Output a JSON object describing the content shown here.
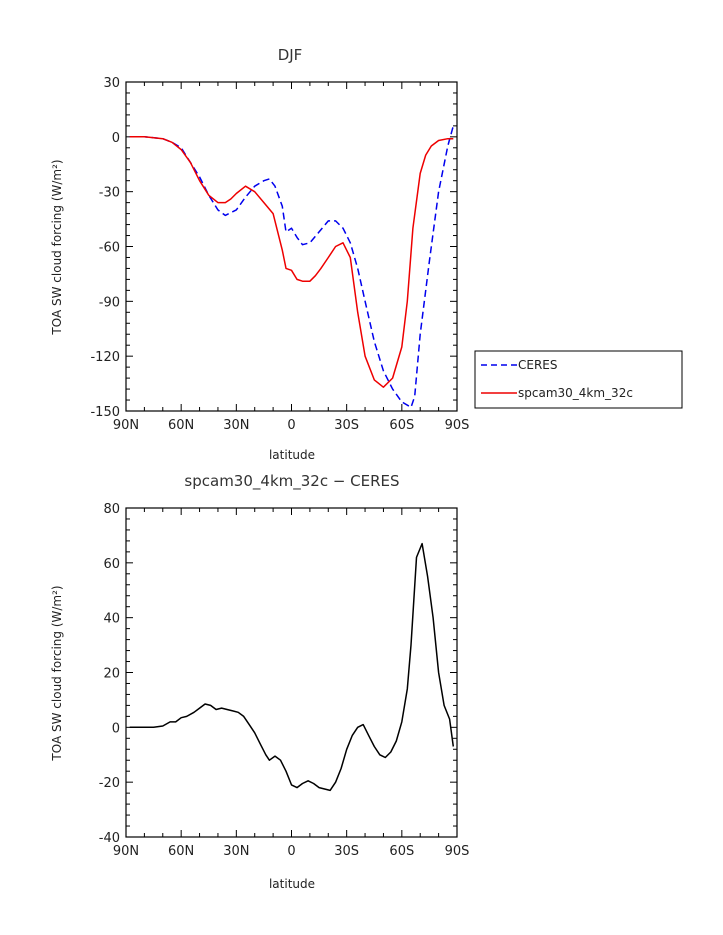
{
  "chart_data": [
    {
      "type": "line",
      "title": "DJF",
      "xlabel": "latitude",
      "ylabel": "TOA SW cloud forcing (W/m²)",
      "xlim": [
        -90,
        90
      ],
      "ylim": [
        -150,
        30
      ],
      "xticks": [
        -90,
        -60,
        -30,
        0,
        30,
        60,
        90
      ],
      "xtick_labels": [
        "90N",
        "60N",
        "30N",
        "0",
        "30S",
        "60S",
        "90S"
      ],
      "yticks": [
        -150,
        -120,
        -90,
        -60,
        -30,
        0,
        30
      ],
      "ytick_labels": [
        "-150",
        "-120",
        "-90",
        "-60",
        "-30",
        "0",
        "30"
      ],
      "legend_position": "right",
      "series": [
        {
          "name": "CERES",
          "color": "#0000ee",
          "style": "dashed",
          "x": [
            -88,
            -80,
            -70,
            -65,
            -60,
            -55,
            -50,
            -45,
            -40,
            -36,
            -30,
            -25,
            -20,
            -15,
            -12,
            -9,
            -5,
            -3,
            0,
            3,
            6,
            10,
            15,
            20,
            24,
            28,
            32,
            36,
            40,
            45,
            50,
            55,
            60,
            65,
            67,
            70,
            75,
            80,
            85,
            88
          ],
          "y": [
            0,
            0,
            -1,
            -3,
            -6,
            -14,
            -22,
            -32,
            -40,
            -43,
            -40,
            -33,
            -27,
            -24,
            -23,
            -27,
            -38,
            -52,
            -50,
            -55,
            -59,
            -58,
            -52,
            -46,
            -46,
            -50,
            -58,
            -72,
            -90,
            -112,
            -128,
            -138,
            -145,
            -148,
            -142,
            -108,
            -68,
            -30,
            -5,
            6
          ]
        },
        {
          "name": "spcam30_4km_32c",
          "color": "#ee0000",
          "style": "solid",
          "x": [
            -88,
            -80,
            -70,
            -65,
            -60,
            -55,
            -50,
            -45,
            -40,
            -36,
            -33,
            -30,
            -25,
            -20,
            -15,
            -10,
            -5,
            -3,
            0,
            3,
            6,
            10,
            13,
            16,
            20,
            24,
            28,
            32,
            36,
            40,
            45,
            50,
            55,
            60,
            63,
            66,
            70,
            73,
            76,
            80,
            85,
            88
          ],
          "y": [
            0,
            0,
            -1,
            -3,
            -7,
            -14,
            -24,
            -32,
            -36,
            -36,
            -34,
            -31,
            -27,
            -30,
            -36,
            -42,
            -62,
            -72,
            -73,
            -78,
            -79,
            -79,
            -76,
            -72,
            -66,
            -60,
            -58,
            -66,
            -96,
            -120,
            -133,
            -137,
            -132,
            -115,
            -90,
            -50,
            -20,
            -10,
            -5,
            -2,
            -1,
            -1
          ]
        }
      ]
    },
    {
      "type": "line",
      "title": "spcam30_4km_32c − CERES",
      "xlabel": "latitude",
      "ylabel": "TOA SW cloud forcing (W/m²)",
      "xlim": [
        -90,
        90
      ],
      "ylim": [
        -40,
        80
      ],
      "xticks": [
        -90,
        -60,
        -30,
        0,
        30,
        60,
        90
      ],
      "xtick_labels": [
        "90N",
        "60N",
        "30N",
        "0",
        "30S",
        "60S",
        "90S"
      ],
      "yticks": [
        -40,
        -20,
        0,
        20,
        40,
        60,
        80
      ],
      "ytick_labels": [
        "-40",
        "-20",
        "0",
        "20",
        "40",
        "60",
        "80"
      ],
      "series": [
        {
          "color": "#000000",
          "style": "solid",
          "x": [
            -88,
            -80,
            -75,
            -70,
            -66,
            -63,
            -60,
            -57,
            -53,
            -50,
            -47,
            -44,
            -41,
            -38,
            -35,
            -32,
            -29,
            -26,
            -23,
            -20,
            -17,
            -14,
            -12,
            -9,
            -6,
            -3,
            0,
            3,
            6,
            9,
            12,
            15,
            18,
            21,
            24,
            27,
            30,
            33,
            36,
            39,
            42,
            45,
            48,
            51,
            54,
            57,
            60,
            63,
            65,
            68,
            71,
            74,
            77,
            80,
            83,
            86,
            88
          ],
          "y": [
            0,
            0,
            0,
            0.5,
            2,
            2,
            3.5,
            4,
            5.5,
            7,
            8.5,
            8,
            6.5,
            7,
            6.5,
            6,
            5.5,
            4,
            1,
            -2,
            -6,
            -10,
            -12,
            -10.5,
            -12,
            -16,
            -21,
            -22,
            -20.5,
            -19.5,
            -20.5,
            -22,
            -22.5,
            -23,
            -20,
            -15,
            -8,
            -3,
            0,
            1,
            -3,
            -7,
            -10,
            -11,
            -9,
            -5,
            2,
            14,
            30,
            62,
            67,
            55,
            40,
            20,
            8,
            3,
            -7
          ]
        }
      ]
    }
  ]
}
